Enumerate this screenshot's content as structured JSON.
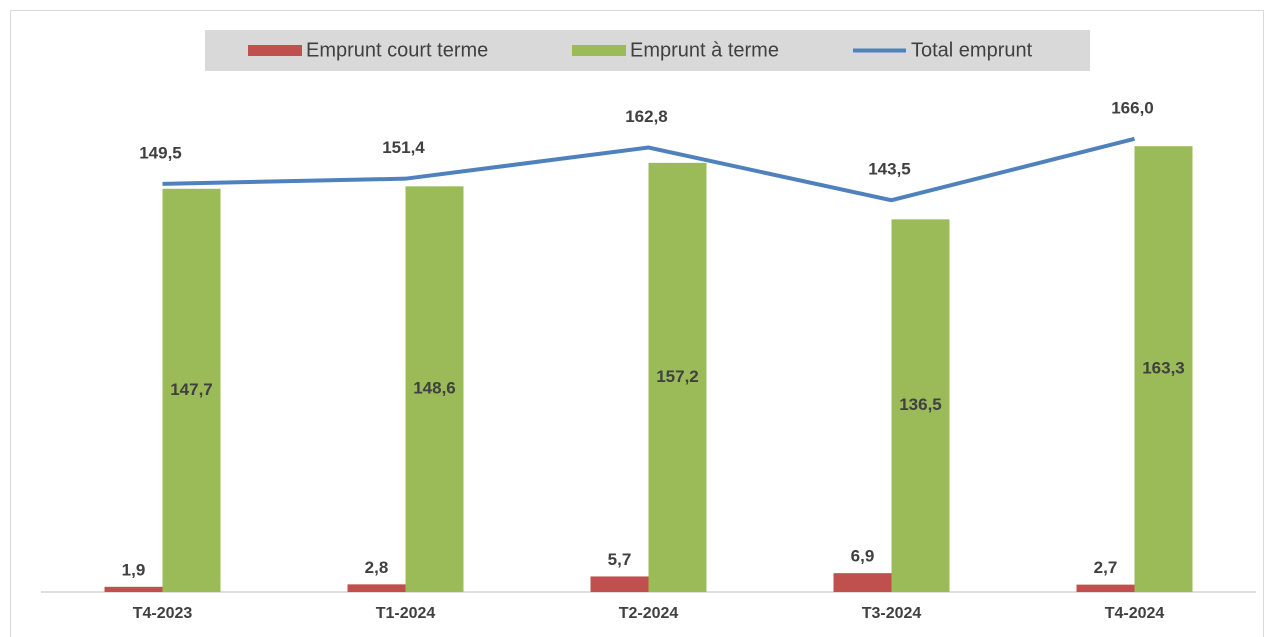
{
  "chart_data": {
    "type": "bar-line",
    "categories": [
      "T4-2023",
      "T1-2024",
      "T2-2024",
      "T3-2024",
      "T4-2024"
    ],
    "series": [
      {
        "name": "Emprunt court terme",
        "type": "bar",
        "color": "#c0504d",
        "values": [
          1.9,
          2.8,
          5.7,
          6.9,
          2.7
        ],
        "value_labels": [
          "1,9",
          "2,8",
          "5,7",
          "6,9",
          "2,7"
        ]
      },
      {
        "name": "Emprunt à terme",
        "type": "bar",
        "color": "#9bbb59",
        "values": [
          147.7,
          148.6,
          157.2,
          136.5,
          163.3
        ],
        "value_labels": [
          "147,7",
          "148,6",
          "157,2",
          "136,5",
          "163,3"
        ]
      },
      {
        "name": "Total emprunt",
        "type": "line",
        "color": "#4f81bd",
        "values": [
          149.5,
          151.4,
          162.8,
          143.5,
          166.0
        ],
        "value_labels": [
          "149,5",
          "151,4",
          "162,8",
          "143,5",
          "166,0"
        ]
      }
    ],
    "ylim": [
      0,
      200
    ],
    "legend": "top"
  }
}
